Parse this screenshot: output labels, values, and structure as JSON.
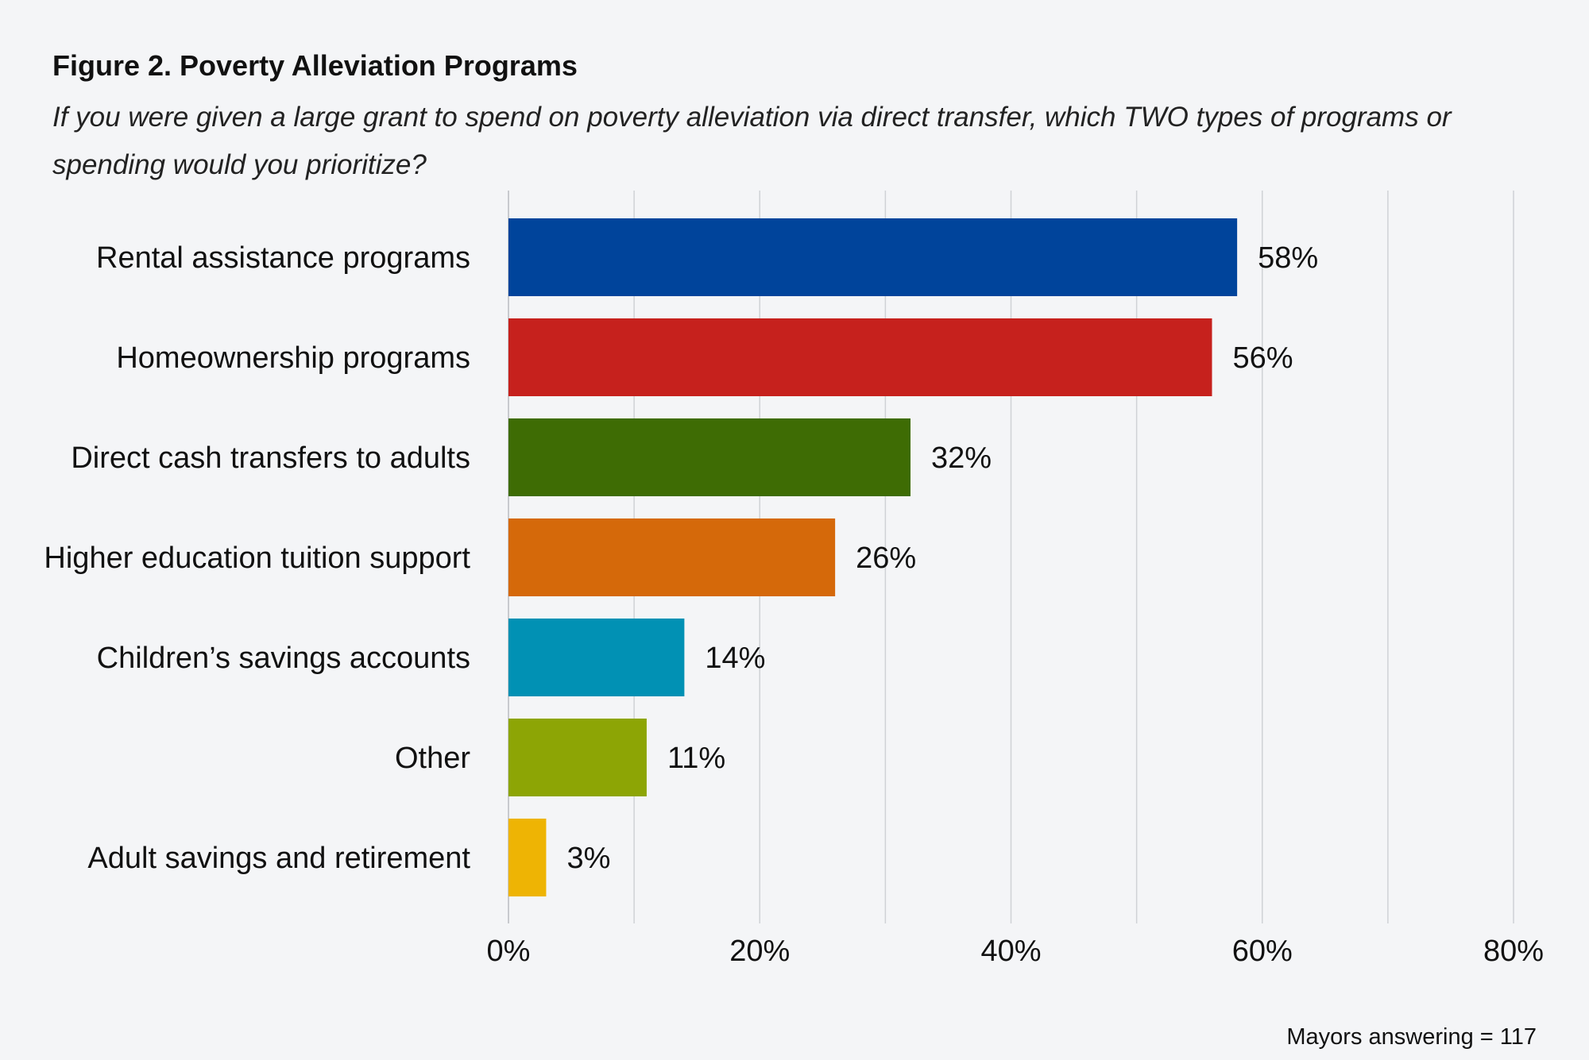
{
  "chart_data": {
    "type": "bar",
    "orientation": "horizontal",
    "title": "Figure 2. Poverty Alleviation Programs",
    "subtitle": "If you were given a large grant to spend on poverty alleviation via direct transfer, which TWO types of programs or spending would you prioritize?",
    "categories": [
      "Rental assistance programs",
      "Homeownership programs",
      "Direct cash transfers to adults",
      "Higher education tuition support",
      "Children’s savings accounts",
      "Other",
      "Adult savings and retirement"
    ],
    "values": [
      58,
      56,
      32,
      26,
      14,
      11,
      3
    ],
    "value_labels": [
      "58%",
      "56%",
      "32%",
      "26%",
      "14%",
      "11%",
      "3%"
    ],
    "colors": [
      "#00449b",
      "#c6211d",
      "#3e6c04",
      "#d5690a",
      "#0191b4",
      "#8da505",
      "#eeb404"
    ],
    "xlim": [
      0,
      80
    ],
    "xticks": [
      0,
      20,
      40,
      60,
      80
    ],
    "xtick_labels": [
      "0%",
      "20%",
      "40%",
      "60%",
      "80%"
    ],
    "minor_gridlines": [
      10,
      30,
      50,
      70
    ],
    "grid": true,
    "xlabel": "",
    "ylabel": "",
    "legend": "none",
    "note": "Mayors answering = 117"
  }
}
